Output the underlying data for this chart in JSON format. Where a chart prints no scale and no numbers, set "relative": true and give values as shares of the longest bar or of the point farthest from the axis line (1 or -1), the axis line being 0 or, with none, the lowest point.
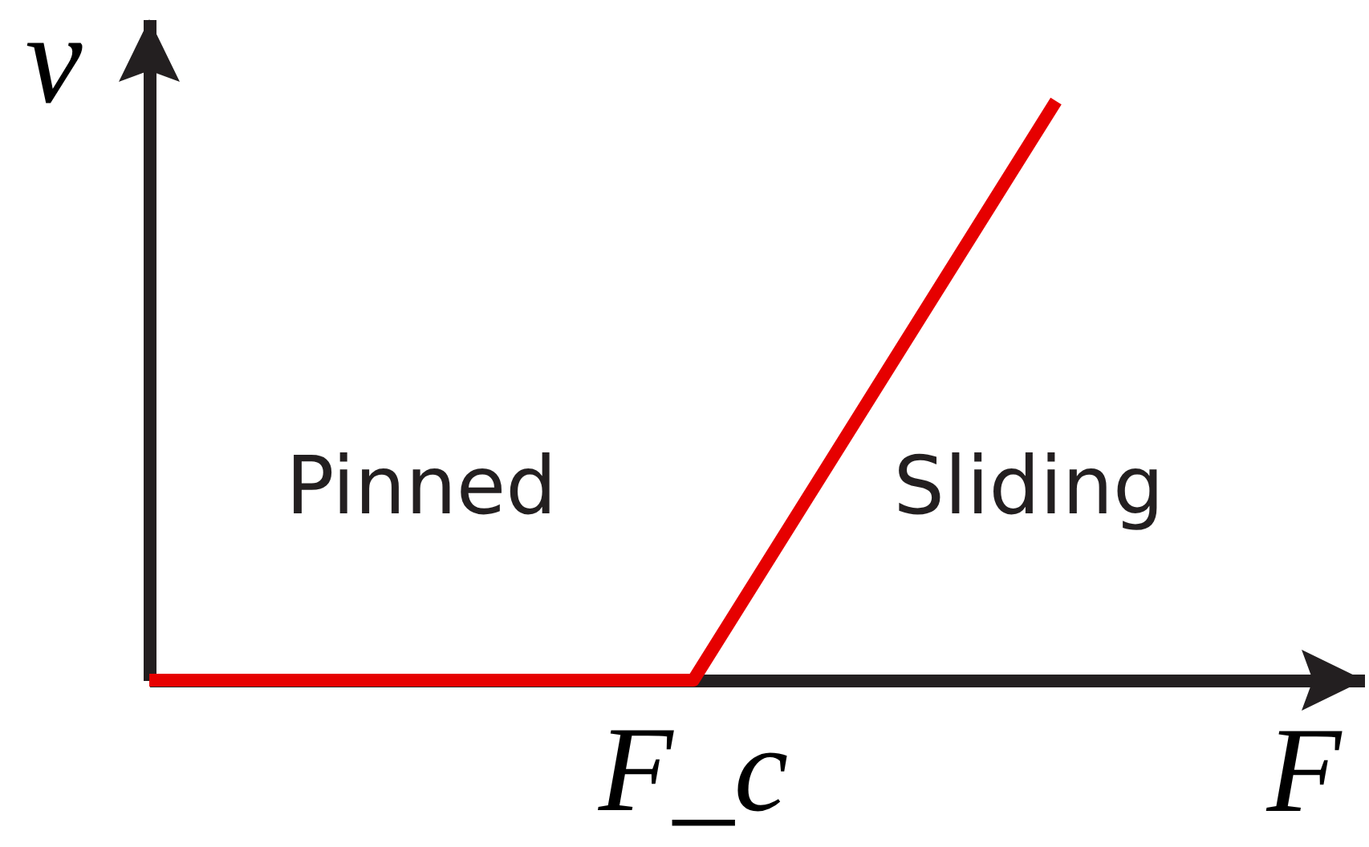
{
  "chart_data": {
    "type": "line",
    "relative": true,
    "xlabel": "F",
    "ylabel": "v",
    "categories": [
      null,
      null,
      null,
      null,
      null,
      null
    ],
    "series": [
      {
        "color": "#e60000",
        "values": [
          0,
          0,
          0,
          0,
          0.5,
          1
        ]
      }
    ],
    "annotations": [
      "Pinned",
      "Sliding",
      {
        "text": "F_c",
        "y": 0
      }
    ]
  }
}
